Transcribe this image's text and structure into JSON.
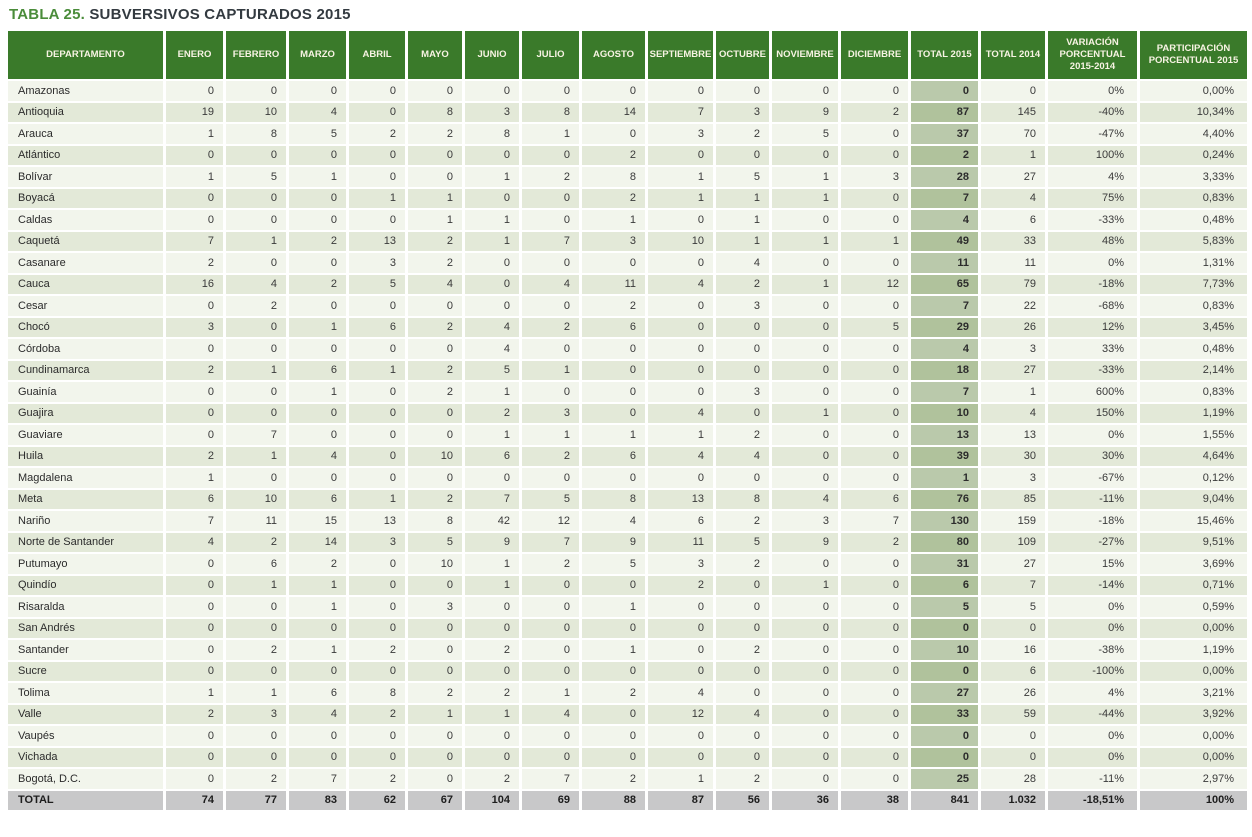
{
  "title": {
    "prefix": "TABLA 25.",
    "text": " SUBVERSIVOS CAPTURADOS 2015"
  },
  "colors": {
    "header_green": "#3a7a2a",
    "title_green": "#4a8c3a",
    "row_light": "#f2f5ec",
    "row_dark": "#e3e9d8",
    "total2015_col_light": "#bac9ab",
    "total2015_col_dark": "#b0c29c",
    "total_row_gray": "#c8c8c9"
  },
  "table": {
    "columns": [
      "DEPARTAMENTO",
      "ENERO",
      "FEBRERO",
      "MARZO",
      "ABRIL",
      "MAYO",
      "JUNIO",
      "JULIO",
      "AGOSTO",
      "SEPTIEMBRE",
      "OCTUBRE",
      "NOVIEMBRE",
      "DICIEMBRE",
      "TOTAL 2015",
      "TOTAL 2014",
      "VARIACIÓN PORCENTUAL 2015-2014",
      "PARTICIPACIÓN PORCENTUAL 2015"
    ],
    "rows": [
      [
        "Amazonas",
        "0",
        "0",
        "0",
        "0",
        "0",
        "0",
        "0",
        "0",
        "0",
        "0",
        "0",
        "0",
        "0",
        "0",
        "0%",
        "0,00%"
      ],
      [
        "Antioquia",
        "19",
        "10",
        "4",
        "0",
        "8",
        "3",
        "8",
        "14",
        "7",
        "3",
        "9",
        "2",
        "87",
        "145",
        "-40%",
        "10,34%"
      ],
      [
        "Arauca",
        "1",
        "8",
        "5",
        "2",
        "2",
        "8",
        "1",
        "0",
        "3",
        "2",
        "5",
        "0",
        "37",
        "70",
        "-47%",
        "4,40%"
      ],
      [
        "Atlántico",
        "0",
        "0",
        "0",
        "0",
        "0",
        "0",
        "0",
        "2",
        "0",
        "0",
        "0",
        "0",
        "2",
        "1",
        "100%",
        "0,24%"
      ],
      [
        "Bolívar",
        "1",
        "5",
        "1",
        "0",
        "0",
        "1",
        "2",
        "8",
        "1",
        "5",
        "1",
        "3",
        "28",
        "27",
        "4%",
        "3,33%"
      ],
      [
        "Boyacá",
        "0",
        "0",
        "0",
        "1",
        "1",
        "0",
        "0",
        "2",
        "1",
        "1",
        "1",
        "0",
        "7",
        "4",
        "75%",
        "0,83%"
      ],
      [
        "Caldas",
        "0",
        "0",
        "0",
        "0",
        "1",
        "1",
        "0",
        "1",
        "0",
        "1",
        "0",
        "0",
        "4",
        "6",
        "-33%",
        "0,48%"
      ],
      [
        "Caquetá",
        "7",
        "1",
        "2",
        "13",
        "2",
        "1",
        "7",
        "3",
        "10",
        "1",
        "1",
        "1",
        "49",
        "33",
        "48%",
        "5,83%"
      ],
      [
        "Casanare",
        "2",
        "0",
        "0",
        "3",
        "2",
        "0",
        "0",
        "0",
        "0",
        "4",
        "0",
        "0",
        "11",
        "11",
        "0%",
        "1,31%"
      ],
      [
        "Cauca",
        "16",
        "4",
        "2",
        "5",
        "4",
        "0",
        "4",
        "11",
        "4",
        "2",
        "1",
        "12",
        "65",
        "79",
        "-18%",
        "7,73%"
      ],
      [
        "Cesar",
        "0",
        "2",
        "0",
        "0",
        "0",
        "0",
        "0",
        "2",
        "0",
        "3",
        "0",
        "0",
        "7",
        "22",
        "-68%",
        "0,83%"
      ],
      [
        "Chocó",
        "3",
        "0",
        "1",
        "6",
        "2",
        "4",
        "2",
        "6",
        "0",
        "0",
        "0",
        "5",
        "29",
        "26",
        "12%",
        "3,45%"
      ],
      [
        "Córdoba",
        "0",
        "0",
        "0",
        "0",
        "0",
        "4",
        "0",
        "0",
        "0",
        "0",
        "0",
        "0",
        "4",
        "3",
        "33%",
        "0,48%"
      ],
      [
        "Cundinamarca",
        "2",
        "1",
        "6",
        "1",
        "2",
        "5",
        "1",
        "0",
        "0",
        "0",
        "0",
        "0",
        "18",
        "27",
        "-33%",
        "2,14%"
      ],
      [
        "Guainía",
        "0",
        "0",
        "1",
        "0",
        "2",
        "1",
        "0",
        "0",
        "0",
        "3",
        "0",
        "0",
        "7",
        "1",
        "600%",
        "0,83%"
      ],
      [
        "Guajira",
        "0",
        "0",
        "0",
        "0",
        "0",
        "2",
        "3",
        "0",
        "4",
        "0",
        "1",
        "0",
        "10",
        "4",
        "150%",
        "1,19%"
      ],
      [
        "Guaviare",
        "0",
        "7",
        "0",
        "0",
        "0",
        "1",
        "1",
        "1",
        "1",
        "2",
        "0",
        "0",
        "13",
        "13",
        "0%",
        "1,55%"
      ],
      [
        "Huila",
        "2",
        "1",
        "4",
        "0",
        "10",
        "6",
        "2",
        "6",
        "4",
        "4",
        "0",
        "0",
        "39",
        "30",
        "30%",
        "4,64%"
      ],
      [
        "Magdalena",
        "1",
        "0",
        "0",
        "0",
        "0",
        "0",
        "0",
        "0",
        "0",
        "0",
        "0",
        "0",
        "1",
        "3",
        "-67%",
        "0,12%"
      ],
      [
        "Meta",
        "6",
        "10",
        "6",
        "1",
        "2",
        "7",
        "5",
        "8",
        "13",
        "8",
        "4",
        "6",
        "76",
        "85",
        "-11%",
        "9,04%"
      ],
      [
        "Nariño",
        "7",
        "11",
        "15",
        "13",
        "8",
        "42",
        "12",
        "4",
        "6",
        "2",
        "3",
        "7",
        "130",
        "159",
        "-18%",
        "15,46%"
      ],
      [
        "Norte de Santander",
        "4",
        "2",
        "14",
        "3",
        "5",
        "9",
        "7",
        "9",
        "11",
        "5",
        "9",
        "2",
        "80",
        "109",
        "-27%",
        "9,51%"
      ],
      [
        "Putumayo",
        "0",
        "6",
        "2",
        "0",
        "10",
        "1",
        "2",
        "5",
        "3",
        "2",
        "0",
        "0",
        "31",
        "27",
        "15%",
        "3,69%"
      ],
      [
        "Quindío",
        "0",
        "1",
        "1",
        "0",
        "0",
        "1",
        "0",
        "0",
        "2",
        "0",
        "1",
        "0",
        "6",
        "7",
        "-14%",
        "0,71%"
      ],
      [
        "Risaralda",
        "0",
        "0",
        "1",
        "0",
        "3",
        "0",
        "0",
        "1",
        "0",
        "0",
        "0",
        "0",
        "5",
        "5",
        "0%",
        "0,59%"
      ],
      [
        "San Andrés",
        "0",
        "0",
        "0",
        "0",
        "0",
        "0",
        "0",
        "0",
        "0",
        "0",
        "0",
        "0",
        "0",
        "0",
        "0%",
        "0,00%"
      ],
      [
        "Santander",
        "0",
        "2",
        "1",
        "2",
        "0",
        "2",
        "0",
        "1",
        "0",
        "2",
        "0",
        "0",
        "10",
        "16",
        "-38%",
        "1,19%"
      ],
      [
        "Sucre",
        "0",
        "0",
        "0",
        "0",
        "0",
        "0",
        "0",
        "0",
        "0",
        "0",
        "0",
        "0",
        "0",
        "6",
        "-100%",
        "0,00%"
      ],
      [
        "Tolima",
        "1",
        "1",
        "6",
        "8",
        "2",
        "2",
        "1",
        "2",
        "4",
        "0",
        "0",
        "0",
        "27",
        "26",
        "4%",
        "3,21%"
      ],
      [
        "Valle",
        "2",
        "3",
        "4",
        "2",
        "1",
        "1",
        "4",
        "0",
        "12",
        "4",
        "0",
        "0",
        "33",
        "59",
        "-44%",
        "3,92%"
      ],
      [
        "Vaupés",
        "0",
        "0",
        "0",
        "0",
        "0",
        "0",
        "0",
        "0",
        "0",
        "0",
        "0",
        "0",
        "0",
        "0",
        "0%",
        "0,00%"
      ],
      [
        "Vichada",
        "0",
        "0",
        "0",
        "0",
        "0",
        "0",
        "0",
        "0",
        "0",
        "0",
        "0",
        "0",
        "0",
        "0",
        "0%",
        "0,00%"
      ],
      [
        "Bogotá, D.C.",
        "0",
        "2",
        "7",
        "2",
        "0",
        "2",
        "7",
        "2",
        "1",
        "2",
        "0",
        "0",
        "25",
        "28",
        "-11%",
        "2,97%"
      ]
    ],
    "total_row": [
      "TOTAL",
      "74",
      "77",
      "83",
      "62",
      "67",
      "104",
      "69",
      "88",
      "87",
      "56",
      "36",
      "38",
      "841",
      "1.032",
      "-18,51%",
      "100%"
    ]
  }
}
